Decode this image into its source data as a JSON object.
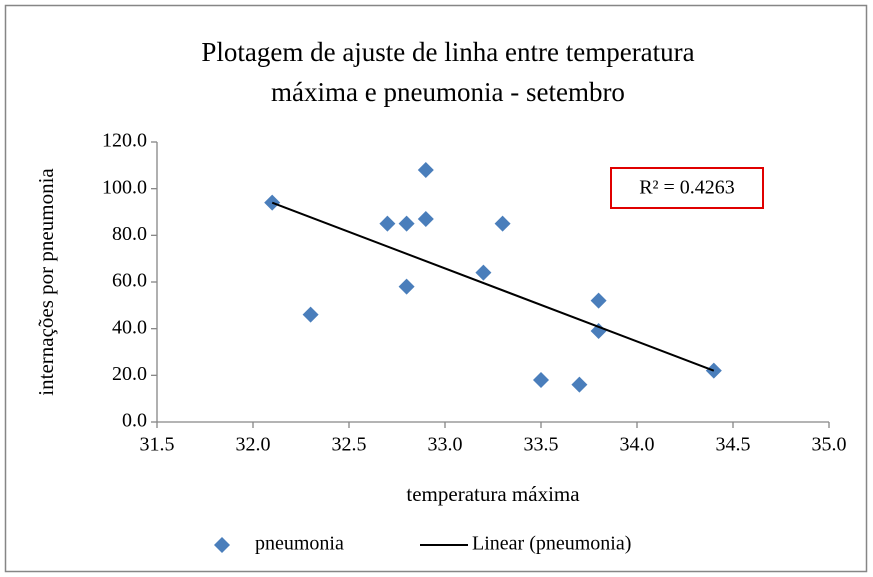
{
  "chart_data": {
    "type": "scatter",
    "title": [
      "Plotagem de ajuste de linha entre temperatura",
      "máxima e pneumonia - setembro"
    ],
    "x_label": "temperatura máxima",
    "y_label": "internações por pneumonia",
    "annotation": "R² = 0.4263",
    "xlim": [
      31.5,
      35.0
    ],
    "xticks": [
      31.5,
      {
        "value": 32,
        "label": "32.0"
      },
      32.5,
      {
        "value": 33,
        "label": "33.0"
      },
      33.5,
      {
        "value": 34,
        "label": "34.0"
      },
      34.5,
      {
        "value": 35,
        "label": "35.0"
      }
    ],
    "ylim": [
      0,
      120
    ],
    "yticks": [
      {
        "value": 0,
        "label": "0.0"
      },
      {
        "value": 20,
        "label": "20.0"
      },
      {
        "value": 40,
        "label": "40.0"
      },
      {
        "value": 60,
        "label": "60.0"
      },
      {
        "value": 80,
        "label": "80.0"
      },
      {
        "value": 100,
        "label": "100.0"
      },
      {
        "value": 120,
        "label": "120.0"
      }
    ],
    "grid": false,
    "legend": "bottom",
    "series": [
      {
        "name": "pneumonia",
        "color": "#4a7ebb",
        "mode": "markers",
        "x": [
          32.1,
          32.3,
          32.7,
          32.8,
          32.8,
          32.9,
          32.9,
          33.2,
          33.3,
          33.5,
          33.7,
          33.8,
          33.8,
          34.4
        ],
        "values": [
          94,
          46,
          85,
          85,
          58,
          108,
          87,
          64,
          85,
          18,
          16,
          52,
          39,
          22
        ]
      },
      {
        "name": "Linear (pneumonia)",
        "color": "#000000",
        "mode": "line",
        "x": [
          32.1,
          34.4
        ],
        "values": [
          94,
          22
        ]
      }
    ]
  }
}
